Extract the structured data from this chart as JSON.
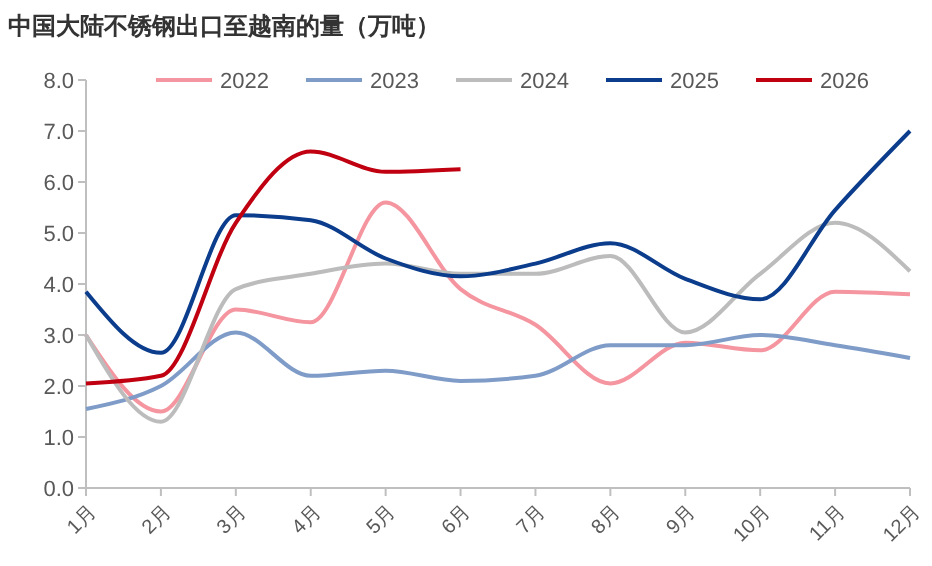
{
  "chart_data": {
    "type": "line",
    "title": "中国大陆不锈钢出口至越南的量（万吨）",
    "categories": [
      "1月",
      "2月",
      "3月",
      "4月",
      "5月",
      "6月",
      "7月",
      "8月",
      "9月",
      "10月",
      "11月",
      "12月"
    ],
    "series": [
      {
        "name": "2022",
        "color": "#f4959f",
        "values": [
          3.0,
          1.5,
          3.5,
          3.25,
          5.6,
          3.9,
          3.2,
          2.05,
          2.85,
          2.7,
          3.85,
          3.8
        ]
      },
      {
        "name": "2023",
        "color": "#7f9cc8",
        "values": [
          1.55,
          2.0,
          3.05,
          2.2,
          2.3,
          2.1,
          2.2,
          2.8,
          2.8,
          3.0,
          2.8,
          2.55
        ]
      },
      {
        "name": "2024",
        "color": "#bcbcbc",
        "values": [
          3.0,
          1.3,
          3.9,
          4.2,
          4.4,
          4.2,
          4.2,
          4.55,
          3.05,
          4.2,
          5.2,
          4.25
        ]
      },
      {
        "name": "2025",
        "color": "#0b3d8c",
        "values": [
          3.85,
          2.65,
          5.35,
          5.25,
          4.5,
          4.15,
          4.4,
          4.8,
          4.1,
          3.7,
          5.45,
          7.0
        ]
      },
      {
        "name": "2026",
        "color": "#c00010",
        "values": [
          2.05,
          2.2,
          5.2,
          6.6,
          6.2,
          6.25,
          null,
          null,
          null,
          null,
          null,
          null
        ]
      }
    ],
    "ylim": [
      0,
      8
    ],
    "yticks": [
      {
        "value": 0,
        "label": "0.0"
      },
      {
        "value": 1,
        "label": "1.0"
      },
      {
        "value": 2,
        "label": "2.0"
      },
      {
        "value": 3,
        "label": "3.0"
      },
      {
        "value": 4,
        "label": "4.0"
      },
      {
        "value": 5,
        "label": "5.0"
      },
      {
        "value": 6,
        "label": "6.0"
      },
      {
        "value": 7,
        "label": "7.0"
      },
      {
        "value": 8,
        "label": "8.0"
      }
    ],
    "grid": false,
    "legend": "top",
    "marker": "none",
    "line_style": "solid"
  }
}
